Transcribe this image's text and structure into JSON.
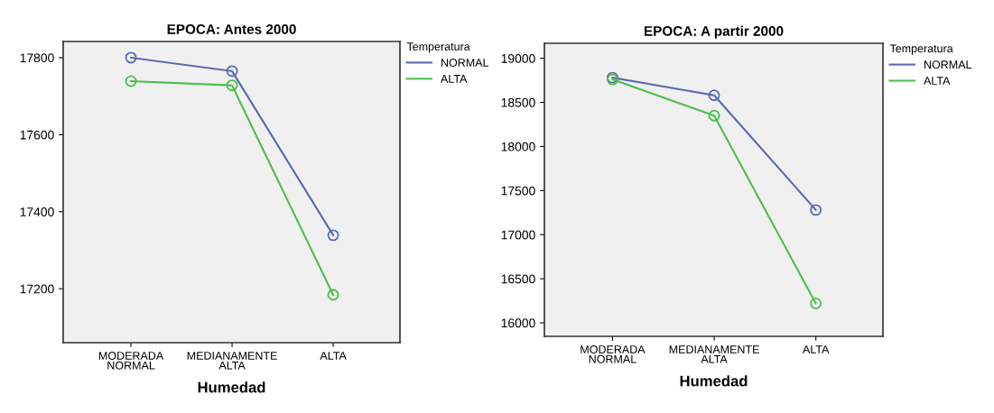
{
  "chart_data": [
    {
      "type": "line",
      "title": "EPOCA: Antes 2000",
      "xlabel": "Humedad",
      "legend_title": "Temperatura",
      "legend": "right",
      "marker": "circle",
      "line_style": "solid",
      "grid": false,
      "categories": [
        "MODERADA\nNORMAL",
        "MEDIANAMENTE\nALTA",
        "ALTA"
      ],
      "ylim": [
        17060,
        17842
      ],
      "yticks": [
        17200,
        17400,
        17600,
        17800
      ],
      "series": [
        {
          "name": "NORMAL",
          "color": "#5a68b0",
          "values": [
            17800,
            17765,
            17339
          ]
        },
        {
          "name": "ALTA",
          "color": "#4cbf4c",
          "values": [
            17739,
            17728,
            17184
          ]
        }
      ]
    },
    {
      "type": "line",
      "title": "EPOCA: A partir 2000",
      "xlabel": "Humedad",
      "legend_title": "Temperatura",
      "legend": "right",
      "marker": "circle",
      "line_style": "solid",
      "grid": false,
      "categories": [
        "MODERADA\nNORMAL",
        "MEDIANAMENTE\nALTA",
        "ALTA"
      ],
      "ylim": [
        15847,
        19170
      ],
      "yticks": [
        16000,
        16500,
        17000,
        17500,
        18000,
        18500,
        19000
      ],
      "series": [
        {
          "name": "NORMAL",
          "color": "#5a68b0",
          "values": [
            18780,
            18580,
            17280
          ]
        },
        {
          "name": "ALTA",
          "color": "#4cbf4c",
          "values": [
            18760,
            18350,
            16220
          ]
        }
      ]
    }
  ]
}
